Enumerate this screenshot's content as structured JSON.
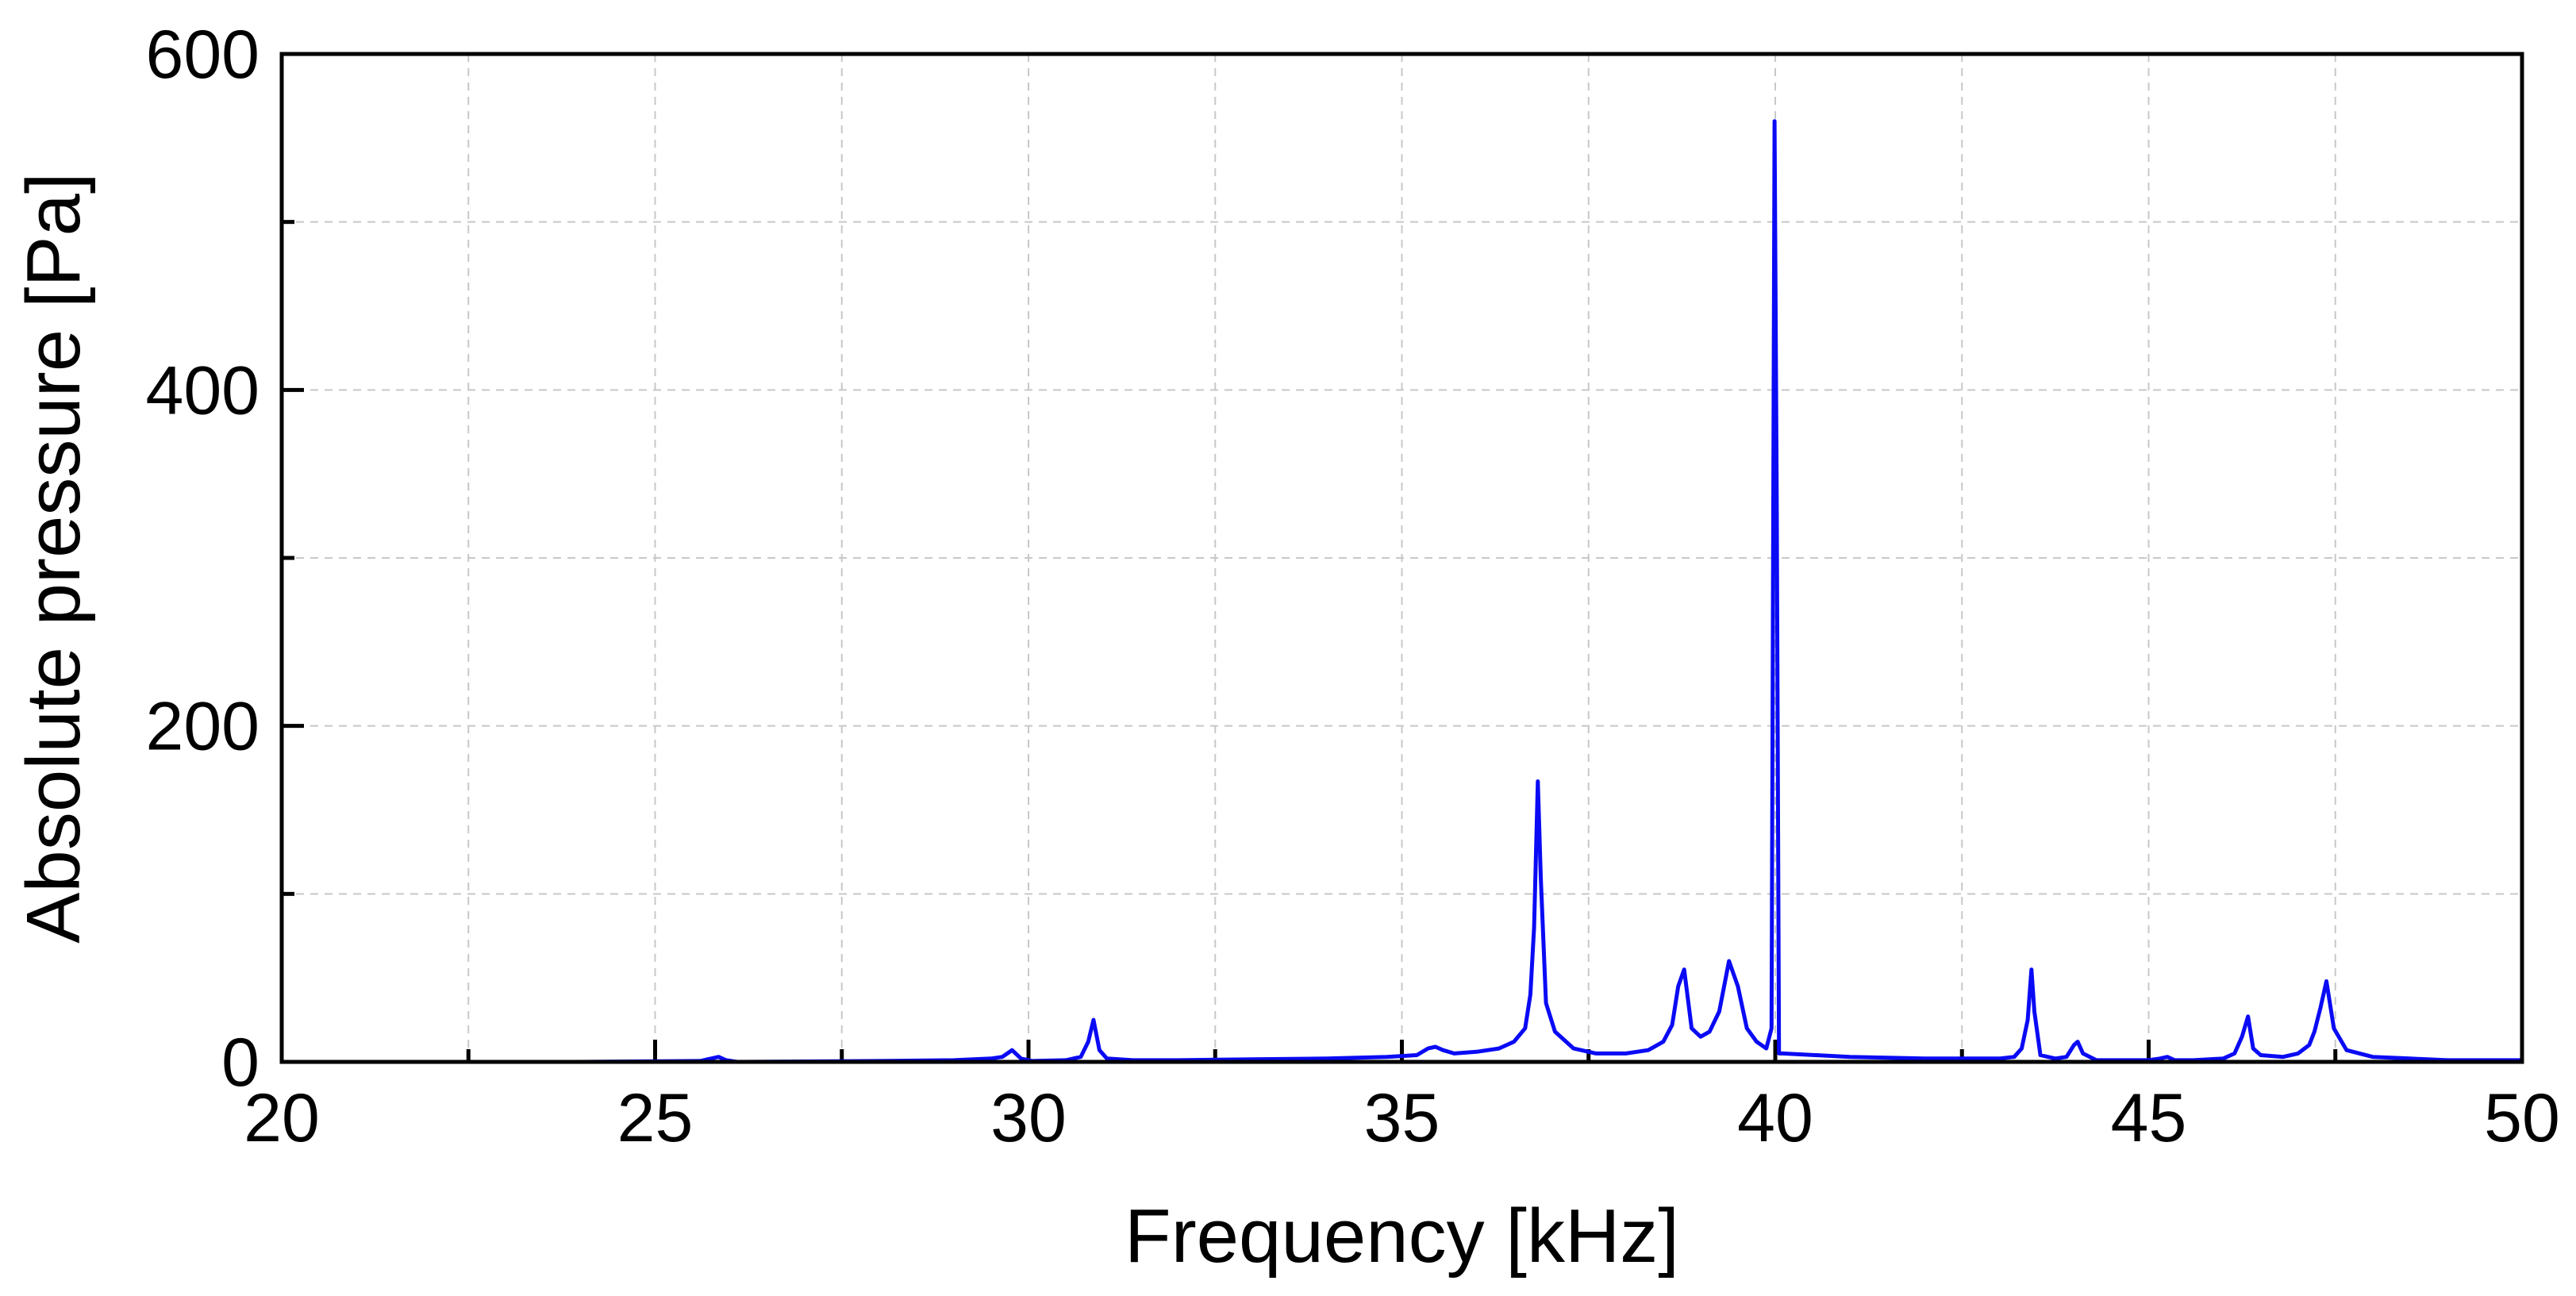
{
  "chart_data": {
    "type": "line",
    "xlabel": "Frequency [kHz]",
    "ylabel": "Absolute pressure [Pa]",
    "xlim": [
      20,
      50
    ],
    "ylim": [
      0,
      600
    ],
    "x_ticks": [
      "20",
      "25",
      "30",
      "35",
      "40",
      "45",
      "50"
    ],
    "y_ticks": [
      "0",
      "200",
      "400",
      "600"
    ],
    "x_tick_values": [
      20,
      25,
      30,
      35,
      40,
      45,
      50
    ],
    "y_tick_values": [
      0,
      200,
      400,
      600
    ],
    "x_minor_step": 2.5,
    "y_minor_step": 100,
    "grid": true,
    "legend": "none",
    "line_color": "#0a0af5",
    "series": [
      {
        "x": [
          20,
          24,
          25.6,
          25.75,
          25.85,
          25.95,
          26.1,
          28,
          29,
          29.5,
          29.65,
          29.78,
          29.9,
          30.05,
          30.5,
          30.7,
          30.8,
          30.87,
          30.95,
          31.05,
          31.4,
          32,
          33,
          34,
          34.8,
          35.2,
          35.35,
          35.45,
          35.55,
          35.7,
          36,
          36.3,
          36.5,
          36.65,
          36.72,
          36.77,
          36.82,
          36.86,
          36.93,
          37.05,
          37.3,
          37.6,
          38,
          38.3,
          38.5,
          38.62,
          38.7,
          38.78,
          38.88,
          39,
          39.12,
          39.25,
          39.38,
          39.5,
          39.62,
          39.75,
          39.88,
          39.95,
          39.99,
          40.02,
          40.05,
          40.1,
          41,
          42,
          43,
          43.2,
          43.3,
          43.38,
          43.43,
          43.47,
          43.55,
          43.75,
          43.9,
          44,
          44.05,
          44.12,
          44.3,
          44.6,
          45,
          45.15,
          45.25,
          45.35,
          45.6,
          46,
          46.15,
          46.25,
          46.33,
          46.4,
          46.5,
          46.8,
          47,
          47.15,
          47.22,
          47.3,
          47.38,
          47.48,
          47.65,
          48,
          48.5,
          49,
          50
        ],
        "y": [
          0,
          0,
          0.5,
          2,
          3,
          1,
          0,
          0.5,
          1,
          2,
          3,
          7,
          2,
          0.5,
          1,
          3,
          12,
          25,
          7,
          2,
          1,
          1,
          1.5,
          2,
          3,
          4,
          8,
          9,
          7,
          5,
          6,
          8,
          12,
          20,
          40,
          80,
          167,
          110,
          35,
          18,
          8,
          5,
          5,
          7,
          12,
          22,
          45,
          55,
          20,
          15,
          18,
          30,
          60,
          45,
          20,
          12,
          8,
          20,
          560,
          330,
          5,
          5,
          3,
          2,
          2,
          3,
          8,
          25,
          55,
          30,
          4,
          2,
          3,
          10,
          12,
          5,
          1,
          1,
          1,
          2,
          3,
          1,
          1,
          2,
          5,
          15,
          27,
          8,
          4,
          3,
          5,
          10,
          18,
          32,
          48,
          20,
          7,
          3,
          2,
          1,
          1
        ]
      }
    ]
  }
}
